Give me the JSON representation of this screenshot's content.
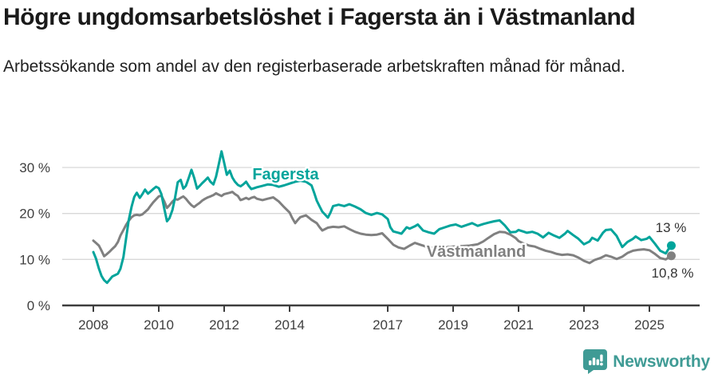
{
  "header": {
    "title": "Högre ungdomsarbetslöshet i Fagersta än i Västmanland",
    "subtitle": "Arbetssökande som andel av den registerbaserade arbetskraften månad för månad."
  },
  "chart_data": {
    "type": "line",
    "unit": "%",
    "grid": "horizontal",
    "x_axis": {
      "ticks": [
        2008,
        2010,
        2012,
        2014,
        2017,
        2019,
        2021,
        2023,
        2025
      ],
      "range": [
        2007.6,
        2026.3
      ]
    },
    "y_axis": {
      "tick_values": [
        0,
        10,
        20,
        30
      ],
      "tick_labels": [
        "0 %",
        "10 %",
        "20 %",
        "30 %"
      ],
      "range": [
        0,
        34.5
      ]
    },
    "series": [
      {
        "name": "Fagersta",
        "color": "#00a49b",
        "end_label": "13 %",
        "points": [
          [
            2008.0,
            11.6
          ],
          [
            2008.08,
            10.2
          ],
          [
            2008.17,
            8.0
          ],
          [
            2008.25,
            6.4
          ],
          [
            2008.33,
            5.5
          ],
          [
            2008.42,
            4.9
          ],
          [
            2008.5,
            5.6
          ],
          [
            2008.58,
            6.3
          ],
          [
            2008.67,
            6.6
          ],
          [
            2008.75,
            6.9
          ],
          [
            2008.83,
            8.0
          ],
          [
            2008.92,
            10.5
          ],
          [
            2009.0,
            14.5
          ],
          [
            2009.08,
            18.5
          ],
          [
            2009.17,
            21.5
          ],
          [
            2009.25,
            23.6
          ],
          [
            2009.33,
            24.5
          ],
          [
            2009.42,
            23.4
          ],
          [
            2009.5,
            24.2
          ],
          [
            2009.58,
            25.2
          ],
          [
            2009.67,
            24.3
          ],
          [
            2009.75,
            24.8
          ],
          [
            2009.83,
            25.3
          ],
          [
            2009.92,
            25.8
          ],
          [
            2010.0,
            25.5
          ],
          [
            2010.08,
            24.2
          ],
          [
            2010.17,
            21.0
          ],
          [
            2010.25,
            18.3
          ],
          [
            2010.33,
            19.0
          ],
          [
            2010.42,
            20.8
          ],
          [
            2010.5,
            23.5
          ],
          [
            2010.58,
            26.8
          ],
          [
            2010.67,
            27.3
          ],
          [
            2010.75,
            25.4
          ],
          [
            2010.83,
            26.0
          ],
          [
            2010.92,
            27.8
          ],
          [
            2011.0,
            29.5
          ],
          [
            2011.08,
            27.8
          ],
          [
            2011.17,
            25.4
          ],
          [
            2011.25,
            26.0
          ],
          [
            2011.33,
            26.6
          ],
          [
            2011.42,
            27.2
          ],
          [
            2011.5,
            27.8
          ],
          [
            2011.58,
            26.9
          ],
          [
            2011.67,
            26.3
          ],
          [
            2011.75,
            28.0
          ],
          [
            2011.83,
            30.5
          ],
          [
            2011.92,
            33.5
          ],
          [
            2012.0,
            31.0
          ],
          [
            2012.08,
            28.4
          ],
          [
            2012.17,
            29.3
          ],
          [
            2012.25,
            27.8
          ],
          [
            2012.33,
            26.9
          ],
          [
            2012.42,
            26.2
          ],
          [
            2012.5,
            25.9
          ],
          [
            2012.58,
            26.3
          ],
          [
            2012.67,
            26.9
          ],
          [
            2012.75,
            26.0
          ],
          [
            2012.83,
            25.3
          ],
          [
            2012.92,
            25.5
          ],
          [
            2013.0,
            25.7
          ],
          [
            2013.17,
            26.0
          ],
          [
            2013.33,
            26.3
          ],
          [
            2013.5,
            26.2
          ],
          [
            2013.67,
            25.8
          ],
          [
            2013.83,
            26.1
          ],
          [
            2014.0,
            26.5
          ],
          [
            2014.17,
            26.9
          ],
          [
            2014.33,
            27.1
          ],
          [
            2014.5,
            26.9
          ],
          [
            2014.67,
            26.1
          ],
          [
            2014.75,
            24.5
          ],
          [
            2014.83,
            22.8
          ],
          [
            2014.92,
            21.5
          ],
          [
            2015.0,
            20.4
          ],
          [
            2015.17,
            19.1
          ],
          [
            2015.25,
            20.2
          ],
          [
            2015.33,
            21.6
          ],
          [
            2015.5,
            21.9
          ],
          [
            2015.67,
            21.6
          ],
          [
            2015.83,
            22.0
          ],
          [
            2016.0,
            21.5
          ],
          [
            2016.17,
            20.9
          ],
          [
            2016.33,
            20.1
          ],
          [
            2016.5,
            19.7
          ],
          [
            2016.67,
            20.1
          ],
          [
            2016.83,
            19.8
          ],
          [
            2017.0,
            18.8
          ],
          [
            2017.08,
            17.0
          ],
          [
            2017.17,
            16.1
          ],
          [
            2017.33,
            15.8
          ],
          [
            2017.42,
            15.6
          ],
          [
            2017.58,
            17.0
          ],
          [
            2017.67,
            16.7
          ],
          [
            2017.83,
            17.2
          ],
          [
            2017.92,
            17.6
          ],
          [
            2018.08,
            16.3
          ],
          [
            2018.25,
            15.9
          ],
          [
            2018.42,
            15.6
          ],
          [
            2018.58,
            16.6
          ],
          [
            2018.75,
            17.0
          ],
          [
            2018.92,
            17.4
          ],
          [
            2019.08,
            17.6
          ],
          [
            2019.25,
            17.1
          ],
          [
            2019.42,
            17.5
          ],
          [
            2019.58,
            17.9
          ],
          [
            2019.75,
            17.3
          ],
          [
            2019.92,
            17.7
          ],
          [
            2020.08,
            18.0
          ],
          [
            2020.25,
            18.3
          ],
          [
            2020.42,
            18.5
          ],
          [
            2020.58,
            17.4
          ],
          [
            2020.75,
            15.9
          ],
          [
            2020.92,
            16.0
          ],
          [
            2021.0,
            16.4
          ],
          [
            2021.17,
            16.0
          ],
          [
            2021.25,
            15.8
          ],
          [
            2021.42,
            16.0
          ],
          [
            2021.58,
            15.6
          ],
          [
            2021.75,
            14.8
          ],
          [
            2021.92,
            15.8
          ],
          [
            2022.08,
            15.2
          ],
          [
            2022.25,
            14.7
          ],
          [
            2022.42,
            15.6
          ],
          [
            2022.5,
            16.2
          ],
          [
            2022.67,
            15.3
          ],
          [
            2022.83,
            14.5
          ],
          [
            2023.0,
            13.3
          ],
          [
            2023.17,
            13.9
          ],
          [
            2023.25,
            14.7
          ],
          [
            2023.42,
            14.1
          ],
          [
            2023.58,
            15.8
          ],
          [
            2023.67,
            16.4
          ],
          [
            2023.83,
            16.5
          ],
          [
            2024.0,
            15.1
          ],
          [
            2024.17,
            12.7
          ],
          [
            2024.33,
            13.8
          ],
          [
            2024.5,
            14.5
          ],
          [
            2024.58,
            15.0
          ],
          [
            2024.75,
            14.2
          ],
          [
            2024.92,
            14.5
          ],
          [
            2025.0,
            14.9
          ],
          [
            2025.17,
            13.4
          ],
          [
            2025.33,
            11.9
          ],
          [
            2025.5,
            11.3
          ],
          [
            2025.58,
            12.2
          ],
          [
            2025.67,
            13.0
          ]
        ]
      },
      {
        "name": "Västmanland",
        "color": "#808080",
        "end_label": "10,8 %",
        "points": [
          [
            2008.0,
            14.1
          ],
          [
            2008.08,
            13.6
          ],
          [
            2008.17,
            13.0
          ],
          [
            2008.25,
            11.9
          ],
          [
            2008.33,
            10.7
          ],
          [
            2008.42,
            11.2
          ],
          [
            2008.5,
            11.7
          ],
          [
            2008.58,
            12.3
          ],
          [
            2008.67,
            12.9
          ],
          [
            2008.75,
            13.8
          ],
          [
            2008.83,
            15.2
          ],
          [
            2008.92,
            16.4
          ],
          [
            2009.0,
            17.5
          ],
          [
            2009.08,
            18.4
          ],
          [
            2009.17,
            19.2
          ],
          [
            2009.25,
            19.6
          ],
          [
            2009.33,
            19.7
          ],
          [
            2009.42,
            19.6
          ],
          [
            2009.5,
            19.8
          ],
          [
            2009.58,
            20.3
          ],
          [
            2009.67,
            20.9
          ],
          [
            2009.75,
            21.7
          ],
          [
            2009.83,
            22.4
          ],
          [
            2009.92,
            23.1
          ],
          [
            2010.0,
            23.7
          ],
          [
            2010.08,
            23.9
          ],
          [
            2010.17,
            22.6
          ],
          [
            2010.25,
            21.2
          ],
          [
            2010.33,
            21.8
          ],
          [
            2010.42,
            22.6
          ],
          [
            2010.5,
            23.1
          ],
          [
            2010.58,
            23.0
          ],
          [
            2010.67,
            23.4
          ],
          [
            2010.75,
            23.7
          ],
          [
            2010.83,
            23.2
          ],
          [
            2010.92,
            22.4
          ],
          [
            2011.0,
            21.8
          ],
          [
            2011.08,
            21.4
          ],
          [
            2011.17,
            21.9
          ],
          [
            2011.25,
            22.3
          ],
          [
            2011.33,
            22.8
          ],
          [
            2011.42,
            23.2
          ],
          [
            2011.5,
            23.5
          ],
          [
            2011.58,
            23.7
          ],
          [
            2011.67,
            24.0
          ],
          [
            2011.75,
            24.4
          ],
          [
            2011.83,
            24.1
          ],
          [
            2011.92,
            23.8
          ],
          [
            2012.0,
            24.2
          ],
          [
            2012.17,
            24.5
          ],
          [
            2012.25,
            24.7
          ],
          [
            2012.33,
            24.2
          ],
          [
            2012.42,
            23.8
          ],
          [
            2012.5,
            22.9
          ],
          [
            2012.58,
            23.1
          ],
          [
            2012.67,
            23.4
          ],
          [
            2012.75,
            23.1
          ],
          [
            2012.83,
            23.4
          ],
          [
            2012.92,
            23.6
          ],
          [
            2013.0,
            23.2
          ],
          [
            2013.17,
            22.9
          ],
          [
            2013.33,
            23.2
          ],
          [
            2013.5,
            23.5
          ],
          [
            2013.67,
            22.6
          ],
          [
            2013.83,
            21.4
          ],
          [
            2014.0,
            20.2
          ],
          [
            2014.08,
            19.0
          ],
          [
            2014.17,
            17.9
          ],
          [
            2014.25,
            18.6
          ],
          [
            2014.33,
            19.2
          ],
          [
            2014.5,
            19.6
          ],
          [
            2014.67,
            18.6
          ],
          [
            2014.83,
            17.9
          ],
          [
            2014.92,
            17.0
          ],
          [
            2015.0,
            16.3
          ],
          [
            2015.17,
            16.9
          ],
          [
            2015.33,
            17.1
          ],
          [
            2015.5,
            17.0
          ],
          [
            2015.67,
            17.2
          ],
          [
            2015.83,
            16.6
          ],
          [
            2016.0,
            16.0
          ],
          [
            2016.17,
            15.6
          ],
          [
            2016.33,
            15.4
          ],
          [
            2016.5,
            15.3
          ],
          [
            2016.67,
            15.4
          ],
          [
            2016.83,
            15.7
          ],
          [
            2017.0,
            14.5
          ],
          [
            2017.17,
            13.2
          ],
          [
            2017.33,
            12.6
          ],
          [
            2017.5,
            12.3
          ],
          [
            2017.67,
            13.0
          ],
          [
            2017.83,
            13.6
          ],
          [
            2018.0,
            13.2
          ],
          [
            2018.17,
            12.8
          ],
          [
            2018.33,
            12.5
          ],
          [
            2018.5,
            12.4
          ],
          [
            2018.67,
            12.5
          ],
          [
            2018.83,
            12.7
          ],
          [
            2019.0,
            12.8
          ],
          [
            2019.25,
            12.9
          ],
          [
            2019.5,
            13.0
          ],
          [
            2019.75,
            13.3
          ],
          [
            2019.92,
            13.9
          ],
          [
            2020.08,
            14.7
          ],
          [
            2020.25,
            15.5
          ],
          [
            2020.42,
            16.0
          ],
          [
            2020.58,
            15.9
          ],
          [
            2020.75,
            15.4
          ],
          [
            2020.92,
            14.6
          ],
          [
            2021.0,
            14.0
          ],
          [
            2021.17,
            13.4
          ],
          [
            2021.33,
            13.0
          ],
          [
            2021.5,
            12.8
          ],
          [
            2021.67,
            12.3
          ],
          [
            2021.83,
            11.9
          ],
          [
            2022.0,
            11.6
          ],
          [
            2022.17,
            11.2
          ],
          [
            2022.33,
            11.0
          ],
          [
            2022.5,
            11.1
          ],
          [
            2022.67,
            10.9
          ],
          [
            2022.83,
            10.4
          ],
          [
            2023.0,
            9.7
          ],
          [
            2023.17,
            9.2
          ],
          [
            2023.33,
            9.9
          ],
          [
            2023.5,
            10.3
          ],
          [
            2023.67,
            10.9
          ],
          [
            2023.83,
            10.6
          ],
          [
            2024.0,
            10.1
          ],
          [
            2024.17,
            10.6
          ],
          [
            2024.33,
            11.4
          ],
          [
            2024.5,
            11.9
          ],
          [
            2024.67,
            12.1
          ],
          [
            2024.83,
            12.2
          ],
          [
            2025.0,
            12.0
          ],
          [
            2025.17,
            11.2
          ],
          [
            2025.33,
            10.3
          ],
          [
            2025.5,
            10.0
          ],
          [
            2025.58,
            10.4
          ],
          [
            2025.67,
            10.8
          ]
        ]
      }
    ]
  },
  "footer": {
    "brand": "Newsworthy"
  },
  "colors": {
    "accent_teal": "#00a49b",
    "series_gray": "#808080",
    "brand_teal": "#3f9b95",
    "grid": "#d8d8d8",
    "axis": "#3d3d3d"
  }
}
